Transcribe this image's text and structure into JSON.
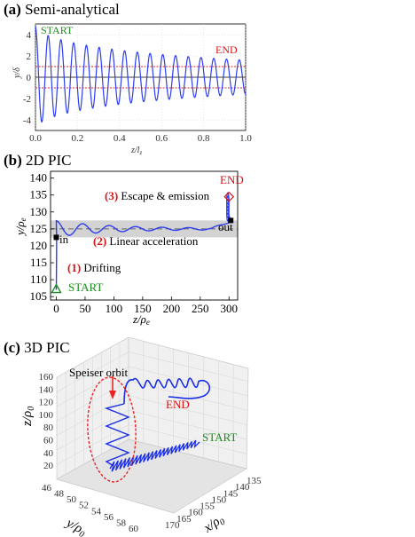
{
  "panel_a": {
    "title_bold": "(a)",
    "title_text": "Semi-analytical",
    "start_label": "START",
    "end_label": "END",
    "ylabel": "y/δ",
    "xlabel": "z/l",
    "xlabel_sub": "z",
    "colors": {
      "trajectory": "#2e3df0",
      "threshold": "#e02020",
      "start": "#1d8a1d",
      "end": "#dd1111"
    },
    "chart_data": {
      "type": "line",
      "xlim": [
        0.0,
        1.0
      ],
      "ylim": [
        -5,
        5
      ],
      "xticks": [
        "0.0",
        "0.2",
        "0.4",
        "0.6",
        "0.8",
        "1.0"
      ],
      "yticks": [
        "4",
        "2",
        "0",
        "-2",
        "-4"
      ],
      "threshold_lines": [
        1,
        -1
      ],
      "oscillation_cycles": 16.5,
      "amplitude_start": 4.8,
      "amplitude_end": 1.6
    }
  },
  "panel_b": {
    "title_bold": "(b)",
    "title_text": "2D PIC",
    "ylabel": "y/ρ",
    "ylabel_sub": "e",
    "xlabel": "z/ρ",
    "xlabel_sub": "e",
    "stage1_num": "(1)",
    "stage1_text": "Drifting",
    "stage2_num": "(2)",
    "stage2_text": "Linear acceleration",
    "stage3_num": "(3)",
    "stage3_text": "Escape & emission",
    "start_label": "START",
    "end_label": "END",
    "in_label": "in",
    "out_label": "out",
    "chart_data": {
      "type": "line",
      "xlim": [
        -10,
        315
      ],
      "ylim": [
        104,
        142
      ],
      "xticks": [
        "0",
        "50",
        "100",
        "150",
        "200",
        "250",
        "300"
      ],
      "yticks": [
        "140",
        "135",
        "130",
        "125",
        "120",
        "115",
        "110",
        "105"
      ],
      "band": [
        122.5,
        127.5
      ],
      "center_line": 125,
      "in_point": [
        0,
        122.5
      ],
      "out_point": [
        303,
        127.5
      ],
      "start_point": [
        0,
        107
      ],
      "end_point": [
        300,
        134.5
      ]
    }
  },
  "panel_c": {
    "title_bold": "(c)",
    "title_text": "3D PIC",
    "speiser_label": "Speiser orbit",
    "end_label": "END",
    "start_label": "START",
    "zlabel": "z/ρ",
    "zlabel_sub": "0",
    "ylabel": "y/ρ",
    "ylabel_sub": "0",
    "xlabel": "x/ρ",
    "xlabel_sub": "0",
    "zticks": [
      "160",
      "140",
      "120",
      "100",
      "80",
      "60",
      "40",
      "20"
    ],
    "yticks": [
      "46",
      "48",
      "50",
      "52",
      "54",
      "56",
      "58",
      "60"
    ],
    "xticks": [
      "170",
      "165",
      "160",
      "155",
      "150",
      "145",
      "140",
      "135"
    ]
  }
}
